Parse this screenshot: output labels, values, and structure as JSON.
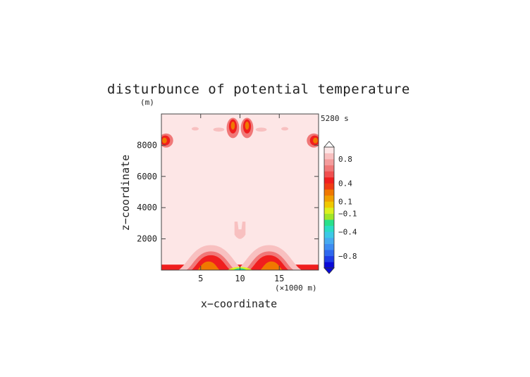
{
  "chart_data": {
    "type": "heatmap",
    "title": "disturbunce of potential temperature",
    "time_label": "5280 s",
    "xlabel": "x−coordinate",
    "ylabel": "z−coordinate",
    "y_unit_label": "(m)",
    "x_unit_label": "(×1000 m)",
    "xlim": [
      0,
      20
    ],
    "ylim": [
      0,
      10000
    ],
    "x_ticks": [
      5,
      10,
      15
    ],
    "x_tick_labels": [
      "5",
      "10",
      "15"
    ],
    "y_ticks": [
      2000,
      4000,
      6000,
      8000
    ],
    "y_tick_labels": [
      "2000",
      "4000",
      "6000",
      "8000"
    ],
    "colorbar": {
      "levels": [
        -1.0,
        -0.9,
        -0.8,
        -0.7,
        -0.6,
        -0.5,
        -0.4,
        -0.3,
        -0.2,
        -0.1,
        0.1,
        0.2,
        0.3,
        0.4,
        0.5,
        0.6,
        0.7,
        0.8,
        0.9,
        1.0
      ],
      "colors": [
        "#0a0ad8",
        "#1e3ce6",
        "#2f68ee",
        "#3d8cf2",
        "#46aaf0",
        "#3cc8e6",
        "#2adcc4",
        "#28e08a",
        "#a0e628",
        "#dcf01e",
        "#f0c800",
        "#f0a000",
        "#f07800",
        "#f03c14",
        "#f01e1e",
        "#f05050",
        "#f07878",
        "#f49c9c",
        "#f8c0c0",
        "#fde6e6"
      ],
      "labels": [
        "0.8",
        "0.4",
        "0.1",
        "−0.1",
        "−0.4",
        "−0.8"
      ],
      "label_values": [
        0.8,
        0.4,
        0.1,
        -0.1,
        -0.4,
        -0.8
      ]
    },
    "features": [
      {
        "shape": "band",
        "x_range": [
          0,
          20
        ],
        "z_range": [
          0,
          350
        ],
        "level": 0.5
      },
      {
        "shape": "mound",
        "x_center": 6.3,
        "x_halfwidth": 4.8,
        "z_top": 1600,
        "level": 0.9
      },
      {
        "shape": "mound",
        "x_center": 6.3,
        "x_halfwidth": 3.7,
        "z_top": 1200,
        "level": 0.7
      },
      {
        "shape": "mound",
        "x_center": 6.3,
        "x_halfwidth": 3.0,
        "z_top": 950,
        "level": 0.5
      },
      {
        "shape": "mound",
        "x_center": 13.7,
        "x_halfwidth": 4.8,
        "z_top": 1600,
        "level": 0.9
      },
      {
        "shape": "mound",
        "x_center": 13.7,
        "x_halfwidth": 3.7,
        "z_top": 1200,
        "level": 0.7
      },
      {
        "shape": "mound",
        "x_center": 13.7,
        "x_halfwidth": 3.0,
        "z_top": 950,
        "level": 0.5
      },
      {
        "shape": "mound",
        "x_center": 6.0,
        "x_halfwidth": 1.8,
        "z_top": 550,
        "level": 0.3
      },
      {
        "shape": "mound",
        "x_center": 14.0,
        "x_halfwidth": 1.8,
        "z_top": 550,
        "level": 0.3
      },
      {
        "shape": "mound",
        "x_center": 10.0,
        "x_halfwidth": 2.4,
        "z_top": 200,
        "level": -0.1
      },
      {
        "shape": "mound",
        "x_center": 10.0,
        "x_halfwidth": 1.4,
        "z_top": 120,
        "level": -0.3
      },
      {
        "shape": "plume",
        "x_center": 10.0,
        "x_halfwidth": 0.7,
        "z_bottom": 2000,
        "z_top": 3100,
        "level": 0.9
      },
      {
        "shape": "blob",
        "x_center": 0.6,
        "z_center": 8300,
        "rx": 0.9,
        "rz": 450,
        "level": 0.7
      },
      {
        "shape": "blob",
        "x_center": 0.5,
        "z_center": 8300,
        "rx": 0.6,
        "rz": 320,
        "level": 0.5
      },
      {
        "shape": "blob",
        "x_center": 0.4,
        "z_center": 8300,
        "rx": 0.3,
        "rz": 180,
        "level": 0.3
      },
      {
        "shape": "blob",
        "x_center": 19.4,
        "z_center": 8300,
        "rx": 0.9,
        "rz": 450,
        "level": 0.7
      },
      {
        "shape": "blob",
        "x_center": 19.5,
        "z_center": 8300,
        "rx": 0.6,
        "rz": 320,
        "level": 0.5
      },
      {
        "shape": "blob",
        "x_center": 19.6,
        "z_center": 8300,
        "rx": 0.3,
        "rz": 180,
        "level": 0.3
      },
      {
        "shape": "blob",
        "x_center": 9.1,
        "z_center": 9100,
        "rx": 0.8,
        "rz": 650,
        "level": 0.7
      },
      {
        "shape": "blob",
        "x_center": 9.1,
        "z_center": 9200,
        "rx": 0.5,
        "rz": 450,
        "level": 0.5
      },
      {
        "shape": "blob",
        "x_center": 9.1,
        "z_center": 9250,
        "rx": 0.25,
        "rz": 260,
        "level": 0.3
      },
      {
        "shape": "blob",
        "x_center": 10.9,
        "z_center": 9100,
        "rx": 0.8,
        "rz": 650,
        "level": 0.7
      },
      {
        "shape": "blob",
        "x_center": 10.9,
        "z_center": 9200,
        "rx": 0.5,
        "rz": 450,
        "level": 0.5
      },
      {
        "shape": "blob",
        "x_center": 10.9,
        "z_center": 9250,
        "rx": 0.25,
        "rz": 260,
        "level": 0.3
      },
      {
        "shape": "blob",
        "x_center": 7.3,
        "z_center": 9000,
        "rx": 0.7,
        "rz": 130,
        "level": 0.9
      },
      {
        "shape": "blob",
        "x_center": 12.7,
        "z_center": 9000,
        "rx": 0.7,
        "rz": 130,
        "level": 0.9
      },
      {
        "shape": "blob",
        "x_center": 4.3,
        "z_center": 9050,
        "rx": 0.45,
        "rz": 110,
        "level": 0.9
      },
      {
        "shape": "blob",
        "x_center": 15.7,
        "z_center": 9050,
        "rx": 0.45,
        "rz": 110,
        "level": 0.9
      }
    ],
    "background_level": 1.0,
    "grid": false
  }
}
